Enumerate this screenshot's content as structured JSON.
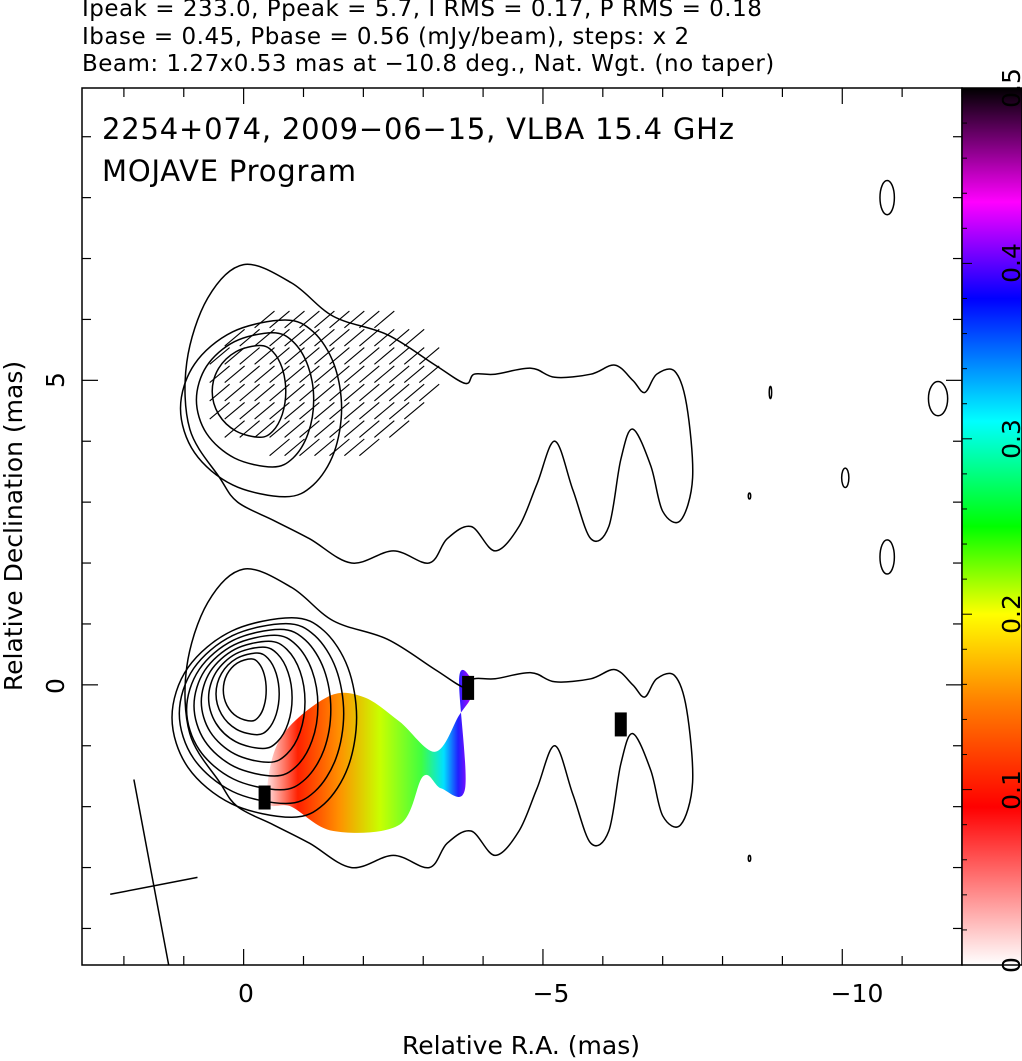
{
  "header": {
    "line1": "Ipeak = 233.0, Ppeak = 5.7, I RMS = 0.17, P RMS = 0.18",
    "line2": "Ibase = 0.45, Pbase = 0.56 (mJy/beam), steps: x 2",
    "line3": "Beam: 1.27x0.53 mas at −10.8 deg., Nat. Wgt. (no taper)"
  },
  "inset": {
    "line1": "2254+074, 2009−06−15, VLBA 15.4 GHz",
    "line2": "MOJAVE Program"
  },
  "chart_data": {
    "type": "heatmap",
    "xlabel": "Relative R.A. (mas)",
    "ylabel": "Relative Declination (mas)",
    "xlim": [
      2.7,
      -12.0
    ],
    "ylim": [
      -4.6,
      9.8
    ],
    "x_ticks": [
      {
        "v": 0,
        "label": "0"
      },
      {
        "v": -5,
        "label": "−5"
      },
      {
        "v": -10,
        "label": "−10"
      }
    ],
    "y_ticks": [
      {
        "v": 0,
        "label": "0"
      },
      {
        "v": 5,
        "label": "5"
      }
    ],
    "colorbar": {
      "range": [
        0,
        0.5
      ],
      "ticks": [
        {
          "v": 0,
          "label": "0"
        },
        {
          "v": 0.1,
          "label": "0.1"
        },
        {
          "v": 0.2,
          "label": "0.2"
        },
        {
          "v": 0.3,
          "label": "0.3"
        },
        {
          "v": 0.4,
          "label": "0.4"
        },
        {
          "v": 0.5,
          "label": "0.5"
        }
      ],
      "colors": [
        "#ffffff",
        "#ff0000",
        "#ff8000",
        "#ffff00",
        "#00ff00",
        "#00ffff",
        "#0000ff",
        "#ff00ff",
        "#000000"
      ]
    },
    "beam": {
      "major_mas": 1.27,
      "minor_mas": 0.53,
      "pa_deg": -10.8,
      "center": [
        1.5,
        -3.3
      ]
    },
    "stokes_I_panel": {
      "offset_dec": 0,
      "core": [
        0,
        0
      ],
      "contour_levels_mJy": [
        0.45,
        0.9,
        1.8,
        3.6,
        7.2,
        14.4,
        28.8,
        57.6,
        115.2
      ],
      "outer_contour": [
        [
          0.4,
          -1.6
        ],
        [
          0.9,
          -0.8
        ],
        [
          0.95,
          0.3
        ],
        [
          0.6,
          1.35
        ],
        [
          0,
          1.9
        ],
        [
          -0.8,
          1.6
        ],
        [
          -1.5,
          1.05
        ],
        [
          -2.4,
          0.75
        ],
        [
          -3.2,
          0.25
        ],
        [
          -3.7,
          -0.05
        ],
        [
          -3.85,
          0.1
        ],
        [
          -4.2,
          0.1
        ],
        [
          -4.8,
          0.2
        ],
        [
          -5.2,
          0.05
        ],
        [
          -5.8,
          0.1
        ],
        [
          -6.2,
          0.25
        ],
        [
          -6.5,
          0
        ],
        [
          -6.7,
          -0.2
        ],
        [
          -6.9,
          0.1
        ],
        [
          -7.2,
          0.15
        ],
        [
          -7.4,
          -0.4
        ],
        [
          -7.5,
          -1.6
        ],
        [
          -7.3,
          -2.3
        ],
        [
          -7.0,
          -2.15
        ],
        [
          -6.8,
          -1.4
        ],
        [
          -6.5,
          -0.8
        ],
        [
          -6.3,
          -1.3
        ],
        [
          -6.1,
          -2.4
        ],
        [
          -5.8,
          -2.6
        ],
        [
          -5.5,
          -1.8
        ],
        [
          -5.2,
          -1.0
        ],
        [
          -4.9,
          -1.7
        ],
        [
          -4.6,
          -2.4
        ],
        [
          -4.2,
          -2.8
        ],
        [
          -3.8,
          -2.4
        ],
        [
          -3.4,
          -2.6
        ],
        [
          -3.1,
          -3.0
        ],
        [
          -2.5,
          -2.8
        ],
        [
          -1.8,
          -3.0
        ],
        [
          -1.1,
          -2.6
        ],
        [
          -0.5,
          -2.3
        ],
        [
          0.1,
          -2.0
        ]
      ],
      "fpol_region": [
        [
          -0.4,
          -1.9
        ],
        [
          -0.6,
          -0.9
        ],
        [
          -1.4,
          -0.2
        ],
        [
          -2.0,
          -0.2
        ],
        [
          -2.6,
          -0.6
        ],
        [
          -3.2,
          -1.1
        ],
        [
          -3.6,
          -0.5
        ],
        [
          -3.8,
          -0.2
        ],
        [
          -3.8,
          0.1
        ],
        [
          -3.6,
          0.1
        ],
        [
          -3.7,
          -1.7
        ],
        [
          -3.3,
          -1.7
        ],
        [
          -3.0,
          -1.5
        ],
        [
          -2.6,
          -2.3
        ],
        [
          -1.5,
          -2.4
        ],
        [
          -0.8,
          -2.0
        ]
      ]
    },
    "polarization_panel": {
      "offset_dec": 5,
      "evpa_region_center": [
        -1.3,
        5.0
      ],
      "evpa_mean_angle_deg": 40
    },
    "isolated_contours": [
      {
        "x": -10.75,
        "y": 8.0,
        "rx": 0.12,
        "ry": 0.28
      },
      {
        "x": -10.75,
        "y": 2.1,
        "rx": 0.12,
        "ry": 0.28
      },
      {
        "x": -10.05,
        "y": 3.4,
        "rx": 0.06,
        "ry": 0.16
      },
      {
        "x": -11.6,
        "y": 4.7,
        "rx": 0.16,
        "ry": 0.28
      },
      {
        "x": -8.45,
        "y": 3.1,
        "rx": 0.02,
        "ry": 0.05
      },
      {
        "x": -8.45,
        "y": -2.85,
        "rx": 0.02,
        "ry": 0.05
      },
      {
        "x": -8.8,
        "y": 4.8,
        "rx": 0.02,
        "ry": 0.1
      }
    ],
    "pixel_artifacts": [
      {
        "x": -6.3,
        "y": -0.65
      },
      {
        "x": -3.75,
        "y": -0.05
      },
      {
        "x": -0.35,
        "y": -1.85
      }
    ]
  }
}
